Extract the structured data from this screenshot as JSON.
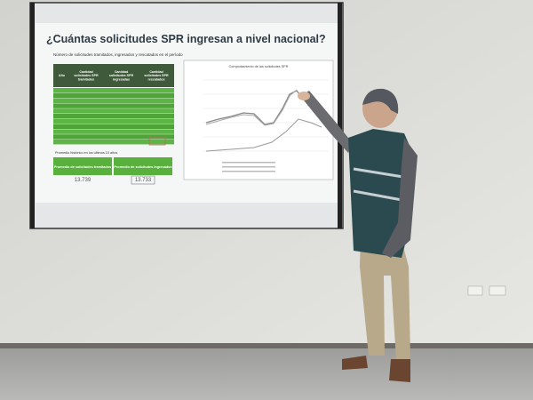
{
  "slide": {
    "title": "¿Cuántas solicitudes SPR ingresan a nivel nacional?",
    "table_caption": "Número de solicitudes tramitados, ingresados y rescatados en el período",
    "table_header": [
      "Año",
      "Cantidad solicitudes SPR tramitados",
      "Cantidad solicitudes SPR ingresadas",
      "Cantidad solicitudes SPR rescatados"
    ],
    "summary": {
      "caption": "Promedio histórico en los últimos 10 años",
      "items": [
        {
          "label": "Promedio de solicitudes tramitados",
          "value": "13.739"
        },
        {
          "label": "Promedio de solicitudes ingresados",
          "value": "13.733"
        }
      ]
    },
    "chart_title": "Comportamiento de las solicitudes SPR"
  }
}
